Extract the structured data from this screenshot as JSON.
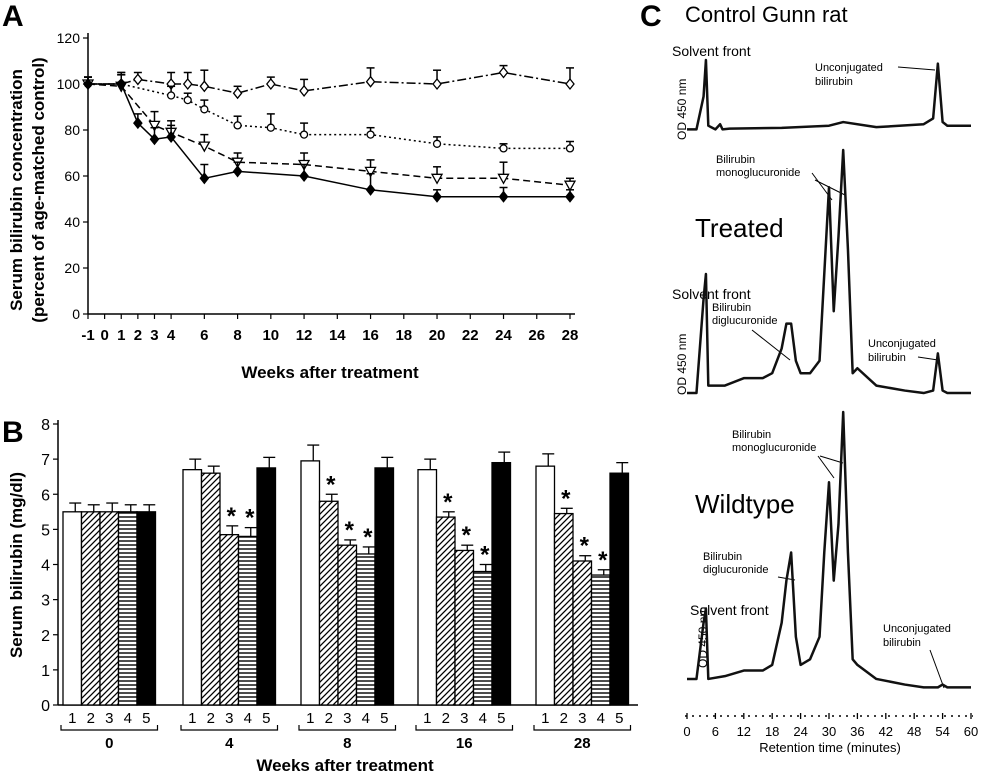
{
  "panel_labels": [
    "A",
    "B",
    "C"
  ],
  "chart_data": [
    {
      "panel": "A",
      "type": "line",
      "xlabel": "Weeks after treatment",
      "ylabel_line1": "Serum bilirubin concentration",
      "ylabel_line2": "(percent of age-matched control)",
      "xlim": [
        -1,
        28
      ],
      "ylim": [
        0,
        120
      ],
      "x_ticks": [
        -1,
        0,
        1,
        2,
        3,
        4,
        6,
        8,
        10,
        12,
        14,
        16,
        18,
        20,
        22,
        24,
        26,
        28
      ],
      "y_ticks": [
        0,
        20,
        40,
        60,
        80,
        100,
        120
      ],
      "series": [
        {
          "style": "dashdot",
          "marker": "diamond-open",
          "x": [
            -1,
            1,
            2,
            4,
            5,
            6,
            8,
            10,
            12,
            16,
            20,
            24,
            28
          ],
          "y": [
            100,
            100,
            102,
            100,
            100,
            99,
            96,
            100,
            97,
            101,
            100,
            105,
            100
          ],
          "err": [
            3,
            5,
            3,
            5,
            5,
            7,
            3,
            3,
            5,
            6,
            6,
            3,
            7
          ]
        },
        {
          "style": "dotted",
          "marker": "circle-open",
          "x": [
            -1,
            1,
            4,
            5,
            6,
            8,
            10,
            12,
            16,
            20,
            24,
            28
          ],
          "y": [
            100,
            100,
            95,
            93,
            89,
            82,
            81,
            78,
            78,
            74,
            72,
            72
          ],
          "err": [
            3,
            5,
            4,
            3,
            4,
            4,
            6,
            5,
            3,
            3,
            2,
            3
          ]
        },
        {
          "style": "dashed",
          "marker": "triangle-down-open",
          "x": [
            -1,
            1,
            3,
            4,
            6,
            8,
            12,
            16,
            20,
            24,
            28
          ],
          "y": [
            100,
            99,
            82,
            79,
            73,
            66,
            65,
            62,
            59,
            59,
            56
          ],
          "err": [
            3,
            5,
            6,
            5,
            5,
            4,
            5,
            5,
            5,
            7,
            3
          ]
        },
        {
          "style": "solid",
          "marker": "diamond-filled",
          "x": [
            -1,
            1,
            2,
            3,
            4,
            6,
            8,
            12,
            16,
            20,
            24,
            28
          ],
          "y": [
            100,
            100,
            83,
            76,
            77,
            59,
            62,
            60,
            54,
            51,
            51,
            51
          ],
          "err": [
            3,
            4,
            4,
            5,
            5,
            6,
            4,
            5,
            7,
            3,
            4,
            3
          ]
        }
      ]
    },
    {
      "panel": "B",
      "type": "bar",
      "ylabel": "Serum bilirubin (mg/dl)",
      "xlabel": "Weeks after treatment",
      "ylim": [
        0,
        8
      ],
      "y_ticks": [
        0,
        1,
        2,
        3,
        4,
        5,
        6,
        7,
        8
      ],
      "groups": [
        "0",
        "4",
        "8",
        "16",
        "28"
      ],
      "bar_labels": [
        "1",
        "2",
        "3",
        "4",
        "5"
      ],
      "bar_fills": [
        "open",
        "diagonal",
        "diagonal",
        "horizontal",
        "solid"
      ],
      "values": [
        [
          5.5,
          5.5,
          5.5,
          5.5,
          5.5
        ],
        [
          6.7,
          6.6,
          4.85,
          4.8,
          6.75
        ],
        [
          6.95,
          5.8,
          4.55,
          4.3,
          6.75
        ],
        [
          6.7,
          5.35,
          4.4,
          3.8,
          6.9
        ],
        [
          6.8,
          5.45,
          4.1,
          3.7,
          6.6
        ]
      ],
      "errors": [
        [
          0.25,
          0.2,
          0.25,
          0.2,
          0.2
        ],
        [
          0.3,
          0.2,
          0.25,
          0.25,
          0.3
        ],
        [
          0.45,
          0.2,
          0.15,
          0.2,
          0.3
        ],
        [
          0.3,
          0.15,
          0.15,
          0.2,
          0.3
        ],
        [
          0.35,
          0.15,
          0.15,
          0.15,
          0.3
        ]
      ],
      "significant": [
        [
          false,
          false,
          false,
          false,
          false
        ],
        [
          false,
          false,
          true,
          true,
          false
        ],
        [
          false,
          true,
          true,
          true,
          false
        ],
        [
          false,
          true,
          true,
          true,
          false
        ],
        [
          false,
          true,
          true,
          true,
          false
        ]
      ],
      "star": "*"
    },
    {
      "panel": "C",
      "type": "line",
      "xlabel": "Retention time (minutes)",
      "x_ticks": [
        0,
        6,
        12,
        18,
        24,
        30,
        36,
        42,
        48,
        54,
        60
      ],
      "ylabel": "OD 450 nm",
      "traces": [
        {
          "title": "Control Gunn rat",
          "annotations": [
            "Solvent front",
            "Unconjugated bilirubin"
          ],
          "x": [
            0,
            2,
            3.5,
            4,
            4.5,
            6,
            7,
            7.5,
            9,
            20,
            30,
            33,
            40,
            50,
            52,
            53,
            54,
            55,
            60
          ],
          "y": [
            0.05,
            0.05,
            0.5,
            1.0,
            0.1,
            0.05,
            0.12,
            0.05,
            0.06,
            0.07,
            0.1,
            0.15,
            0.08,
            0.12,
            0.2,
            0.95,
            0.15,
            0.1,
            0.1
          ]
        },
        {
          "title": "Treated",
          "annotations": [
            "Solvent front",
            "Bilirubin diglucuronide",
            "Bilirubin monoglucuronide",
            "Unconjugated bilirubin"
          ],
          "x": [
            0,
            2,
            3.5,
            4,
            4.5,
            8,
            12,
            16,
            18,
            20,
            21,
            22,
            23,
            24,
            26,
            28,
            29,
            30,
            31,
            32,
            33,
            34,
            35,
            36,
            40,
            46,
            50,
            52,
            53,
            54,
            55,
            60
          ],
          "y": [
            0.02,
            0.02,
            0.4,
            0.5,
            0.05,
            0.05,
            0.08,
            0.08,
            0.1,
            0.2,
            0.3,
            0.3,
            0.15,
            0.1,
            0.1,
            0.15,
            0.5,
            0.85,
            0.35,
            0.65,
            1.0,
            0.6,
            0.1,
            0.12,
            0.05,
            0.03,
            0.02,
            0.03,
            0.18,
            0.03,
            0.02,
            0.02
          ]
        },
        {
          "title": "Wildtype",
          "annotations": [
            "Bilirubin diglucuronide",
            "Solvent front",
            "Bilirubin monoglucuronide",
            "Unconjugated bilirubin"
          ],
          "x": [
            0,
            2,
            3.5,
            4,
            4.5,
            8,
            12,
            16,
            18,
            20,
            21,
            22,
            23,
            24,
            26,
            28,
            29,
            30,
            31,
            32,
            33,
            34,
            35,
            36,
            40,
            46,
            50,
            53,
            54,
            55,
            58,
            60
          ],
          "y": [
            0.05,
            0.05,
            0.25,
            0.3,
            0.05,
            0.06,
            0.08,
            0.08,
            0.1,
            0.25,
            0.4,
            0.5,
            0.2,
            0.1,
            0.12,
            0.2,
            0.5,
            0.75,
            0.4,
            0.6,
            1.0,
            0.5,
            0.12,
            0.1,
            0.05,
            0.03,
            0.02,
            0.02,
            0.03,
            0.02,
            0.02,
            0.02
          ]
        }
      ]
    }
  ]
}
